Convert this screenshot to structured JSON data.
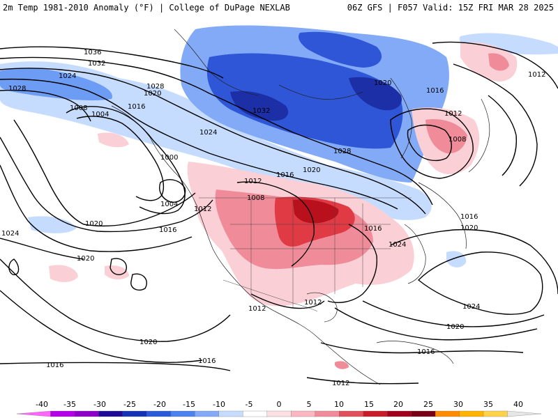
{
  "header": {
    "left": "2m Temp 1981-2010 Anomaly (°F) | College of DuPage NEXLAB",
    "right": "06Z GFS | F057 Valid: 15Z FRI MAR 28 2025"
  },
  "map": {
    "isobar_labels": [
      "1036",
      "1032",
      "1028",
      "1024",
      "1028",
      "1020",
      "1016",
      "1008",
      "1004",
      "1000",
      "1004",
      "1020",
      "1016",
      "1024",
      "1020",
      "1032",
      "1028",
      "1024",
      "1016",
      "1020",
      "1012",
      "1008",
      "1012",
      "1016",
      "1024",
      "1020",
      "1016",
      "1012",
      "1008",
      "1012",
      "1016",
      "1020",
      "1024",
      "1020",
      "1016",
      "1012",
      "1012",
      "1020",
      "1016",
      "1016",
      "1012"
    ],
    "colors": {
      "cold_light": "#c6dcff",
      "cold_mid": "#6d9cf4",
      "cold_dark": "#2f56d6",
      "cold_deep": "#1c2fa6",
      "warm_light": "#fbcfd6",
      "warm_mid": "#f08c99",
      "warm_dark": "#e03a44",
      "warm_deep": "#b8101c"
    }
  },
  "colorbar": {
    "ticks": [
      "-40",
      "-35",
      "-30",
      "-25",
      "-20",
      "-15",
      "-10",
      "-5",
      "0",
      "5",
      "10",
      "15",
      "20",
      "25",
      "30",
      "35",
      "40"
    ],
    "colors": [
      "#ff66ff",
      "#b400e6",
      "#8c00c8",
      "#1e0a96",
      "#1432b4",
      "#2a5ad8",
      "#4a82ee",
      "#82aaf6",
      "#c6dcff",
      "#ffffff",
      "#fde0e3",
      "#fbb6bf",
      "#f08c99",
      "#e0505a",
      "#c81c28",
      "#a0001a",
      "#780014",
      "#ff8c00",
      "#ffb400",
      "#ffd24a",
      "#e6e6e6"
    ]
  }
}
